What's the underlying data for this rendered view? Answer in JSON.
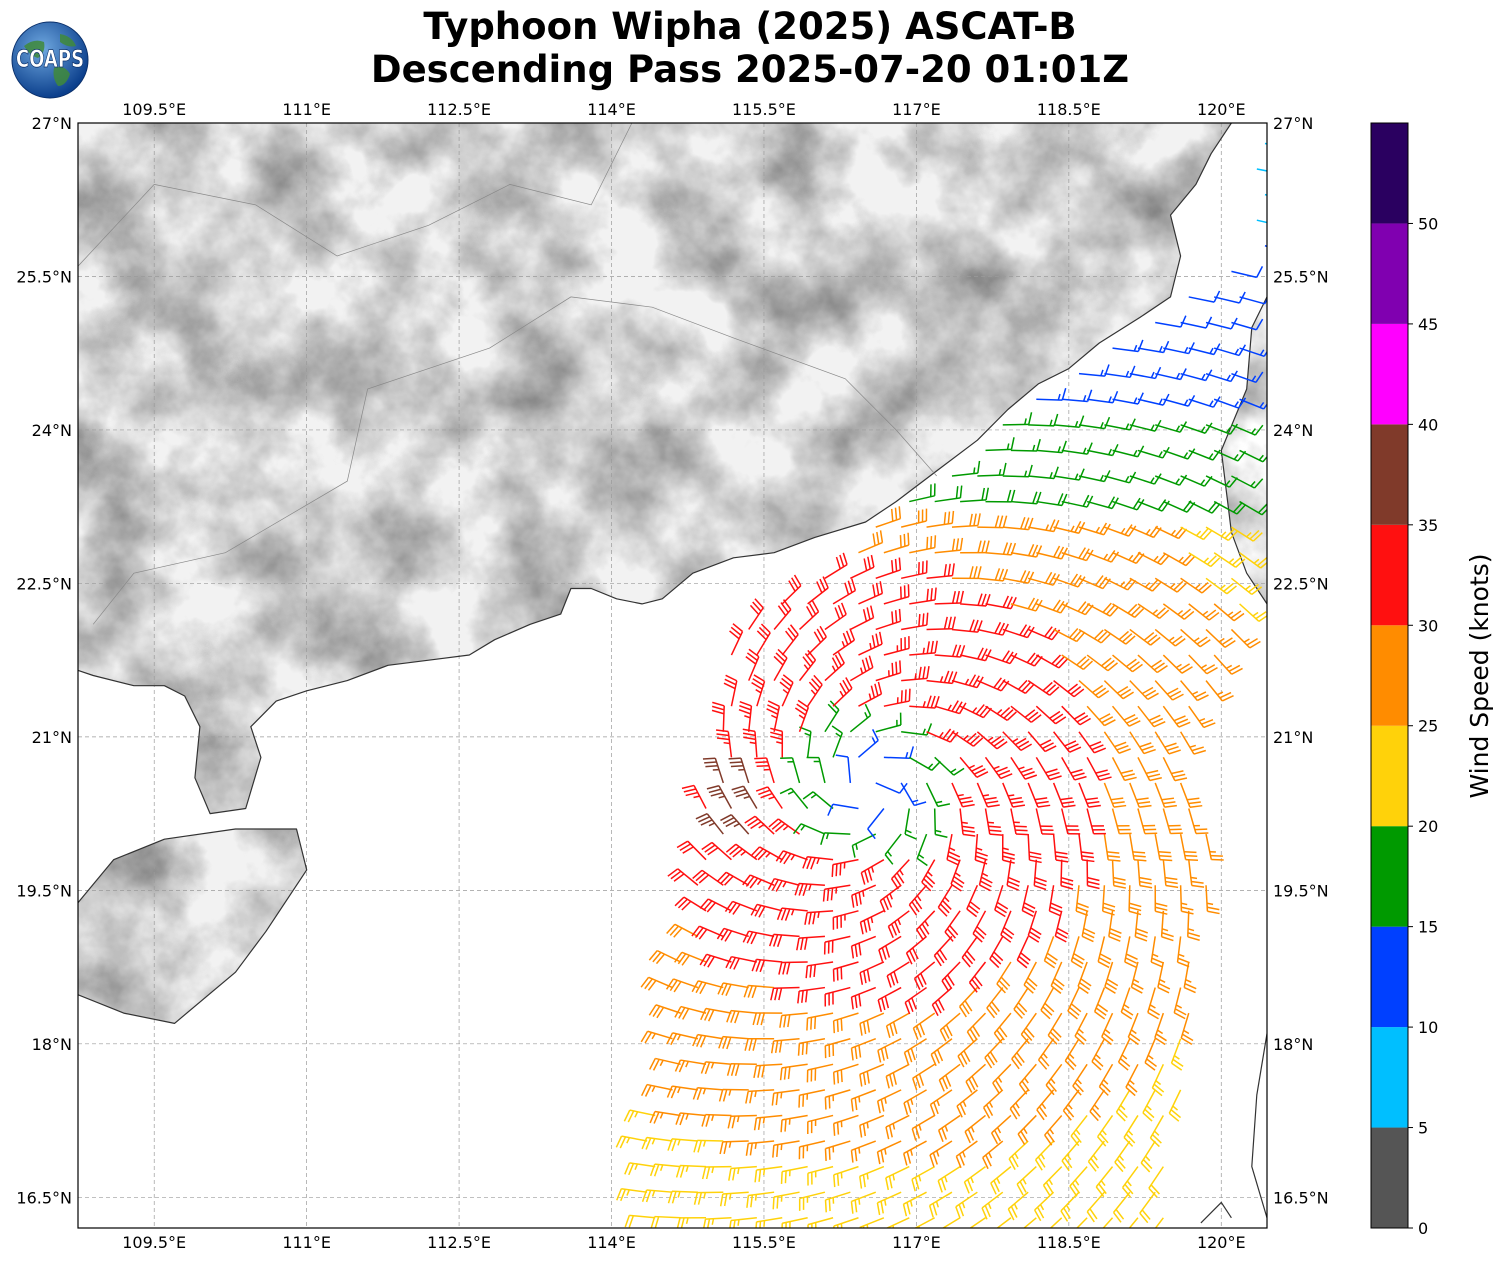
{
  "title": {
    "line1": "Typhoon Wipha (2025) ASCAT-B",
    "line2": "Descending Pass 2025-07-20 01:01Z"
  },
  "logo": {
    "text": "COAPS",
    "icon": "globe-icon"
  },
  "map": {
    "lon_range": [
      108.75,
      120.45
    ],
    "lat_range": [
      16.2,
      27.0
    ],
    "lon_ticks": [
      109.5,
      111,
      112.5,
      114,
      115.5,
      117,
      118.5,
      120
    ],
    "lon_tick_labels": [
      "109.5°E",
      "111°E",
      "112.5°E",
      "114°E",
      "115.5°E",
      "117°E",
      "118.5°E",
      "120°E"
    ],
    "lat_ticks": [
      27,
      25.5,
      24,
      22.5,
      21,
      19.5,
      18,
      16.5
    ],
    "lat_tick_labels": [
      "27°N",
      "25.5°N",
      "24°N",
      "22.5°N",
      "21°N",
      "19.5°N",
      "18°N",
      "16.5°N"
    ],
    "gridlines": true,
    "land_color": "#f2f2f2",
    "coast_color": "#333333"
  },
  "colorbar": {
    "label": "Wind Speed (knots)",
    "ticks": [
      0,
      5,
      10,
      15,
      20,
      25,
      30,
      35,
      40,
      45,
      50
    ],
    "tick_labels": [
      "0",
      "5",
      "10",
      "15",
      "20",
      "25",
      "30",
      "35",
      "40",
      "45",
      "50"
    ],
    "bins": [
      {
        "min": 0,
        "max": 5,
        "color": "#555555"
      },
      {
        "min": 5,
        "max": 10,
        "color": "#00bfff"
      },
      {
        "min": 10,
        "max": 15,
        "color": "#0040ff"
      },
      {
        "min": 15,
        "max": 20,
        "color": "#009a00"
      },
      {
        "min": 20,
        "max": 25,
        "color": "#ffd20a"
      },
      {
        "min": 25,
        "max": 30,
        "color": "#ff8c00"
      },
      {
        "min": 30,
        "max": 35,
        "color": "#ff1010"
      },
      {
        "min": 35,
        "max": 40,
        "color": "#803a2a"
      },
      {
        "min": 40,
        "max": 45,
        "color": "#ff00ff"
      },
      {
        "min": 45,
        "max": 50,
        "color": "#8000b0"
      },
      {
        "min": 50,
        "max": 55,
        "color": "#2a0060"
      }
    ]
  },
  "wind_field": {
    "center_lon": 116.55,
    "center_lat": 20.5,
    "swath": [
      [
        114.2,
        16.2
      ],
      [
        115.2,
        22.1
      ],
      [
        116.3,
        22.8
      ],
      [
        117.7,
        24.0
      ],
      [
        118.6,
        24.6
      ],
      [
        119.7,
        25.4
      ],
      [
        120.45,
        25.8
      ],
      [
        120.45,
        27.0
      ],
      [
        120.3,
        26.9
      ],
      [
        120.2,
        25.5
      ],
      [
        120.3,
        22.3
      ],
      [
        119.6,
        21.0
      ],
      [
        119.9,
        20.0
      ],
      [
        119.5,
        16.2
      ]
    ]
  }
}
